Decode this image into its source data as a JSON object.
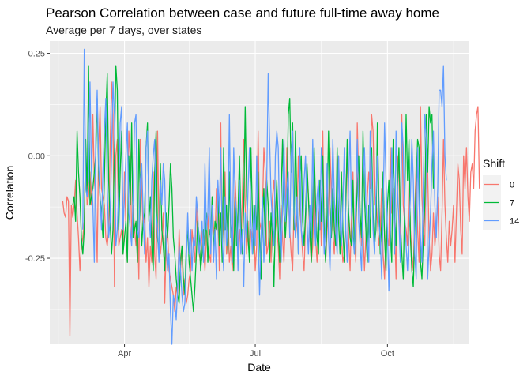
{
  "chart_data": {
    "type": "line",
    "title": "Pearson Correlation between case and future full-time away home",
    "subtitle": "Average per 7 days, over states",
    "xlabel": "Date",
    "ylabel": "Correlation",
    "x_ticks": [
      "Apr",
      "Jul",
      "Oct"
    ],
    "y_ticks": [
      0.25,
      0.0,
      -0.25
    ],
    "y_tick_labels": [
      "0.25",
      "0.00",
      "-0.25"
    ],
    "ylim": [
      -0.46,
      0.28
    ],
    "grid": true,
    "legend_position": "right",
    "legend_title": "Shift",
    "series": [
      {
        "name": "0",
        "color": "#F8766D",
        "start": "2020-02-18",
        "values": [
          -0.11,
          -0.14,
          -0.15,
          -0.1,
          -0.11,
          -0.44,
          -0.12,
          -0.15,
          -0.12,
          -0.06,
          -0.14,
          -0.2,
          -0.28,
          -0.22,
          -0.2,
          -0.16,
          0.02,
          -0.12,
          -0.1,
          -0.04,
          -0.12,
          0.1,
          -0.06,
          -0.1,
          -0.26,
          0.02,
          0.12,
          -0.08,
          -0.1,
          -0.12,
          -0.2,
          -0.22,
          -0.18,
          0.02,
          0.18,
          0.1,
          -0.32,
          0.0,
          0.04,
          -0.22,
          -0.2,
          -0.18,
          -0.24,
          -0.04,
          -0.18,
          -0.26,
          0.06,
          0.0,
          -0.2,
          -0.12,
          -0.18,
          -0.22,
          -0.14,
          -0.3,
          0.04,
          -0.08,
          -0.18,
          -0.14,
          -0.26,
          -0.2,
          -0.32,
          -0.22,
          -0.26,
          -0.04,
          -0.24,
          -0.3,
          0.06,
          -0.18,
          -0.24,
          -0.2,
          -0.14,
          -0.36,
          -0.22,
          -0.18,
          -0.28,
          -0.3,
          -0.32,
          -0.34,
          -0.38,
          -0.32,
          -0.34,
          -0.18,
          -0.28,
          -0.22,
          -0.34,
          -0.3,
          -0.36,
          -0.34,
          -0.3,
          -0.28,
          -0.18,
          -0.22,
          -0.26,
          -0.12,
          -0.2,
          -0.24,
          -0.26,
          -0.18,
          -0.22,
          -0.28,
          -0.2,
          -0.14,
          -0.24,
          -0.26,
          -0.1,
          -0.18,
          -0.2,
          -0.08,
          -0.12,
          -0.28,
          0.08,
          -0.22,
          -0.16,
          -0.04,
          -0.24,
          -0.14,
          -0.26,
          -0.22,
          -0.28,
          -0.2,
          -0.06,
          -0.14,
          -0.22,
          -0.18,
          -0.24,
          -0.1,
          0.04,
          -0.12,
          -0.24,
          -0.16,
          -0.26,
          -0.18,
          -0.2,
          -0.14,
          -0.28,
          -0.22,
          0.06,
          -0.16,
          -0.18,
          -0.14,
          0.02,
          -0.04,
          -0.24,
          -0.22,
          -0.16,
          -0.26,
          -0.1,
          -0.06,
          -0.14,
          -0.18,
          -0.22,
          -0.3,
          -0.12,
          -0.2,
          -0.26,
          -0.14,
          0.02,
          -0.1,
          -0.18,
          -0.24,
          -0.28,
          -0.12,
          -0.2,
          -0.16,
          0.0,
          -0.12,
          -0.18,
          -0.24,
          -0.28,
          -0.16,
          -0.06,
          -0.1,
          -0.2,
          -0.26,
          -0.22,
          -0.06,
          -0.2,
          -0.26,
          -0.16,
          -0.1,
          -0.22,
          0.06,
          -0.2,
          -0.26,
          -0.18,
          -0.14,
          0.02,
          -0.1,
          -0.18,
          -0.24,
          -0.14,
          -0.08,
          0.0,
          -0.16,
          -0.2,
          -0.26,
          -0.24,
          -0.12,
          0.02,
          -0.2,
          -0.28,
          -0.14,
          -0.04,
          -0.2,
          -0.26,
          0.08,
          -0.06,
          -0.16,
          -0.22,
          -0.18,
          -0.28,
          -0.2,
          -0.1,
          -0.04,
          -0.08,
          0.1,
          0.06,
          -0.12,
          -0.1,
          -0.16,
          -0.22,
          -0.18,
          -0.08,
          -0.24,
          -0.3,
          -0.18,
          -0.2,
          -0.22,
          0.02,
          -0.14,
          -0.08,
          -0.18,
          -0.3,
          0.0,
          -0.04,
          -0.22,
          0.1,
          -0.12,
          -0.16,
          -0.18,
          -0.22,
          -0.06,
          -0.18,
          -0.24,
          -0.28,
          -0.14,
          -0.02,
          -0.18,
          -0.26,
          0.12,
          -0.1,
          -0.18,
          -0.22,
          0.06,
          -0.04,
          -0.2,
          -0.28,
          -0.24,
          -0.14,
          -0.22,
          -0.18,
          -0.1,
          -0.24,
          -0.28,
          -0.14,
          0.04,
          -0.12,
          -0.2,
          -0.26,
          -0.16,
          -0.22,
          -0.18,
          -0.12,
          -0.26,
          -0.14,
          -0.02,
          -0.06,
          -0.18,
          -0.24,
          0.0,
          -0.08,
          0.02,
          -0.1,
          -0.16,
          -0.04,
          -0.02,
          -0.08,
          0.06,
          0.1,
          0.12,
          -0.08
        ]
      },
      {
        "name": "7",
        "color": "#00BA38",
        "start": "2020-02-25",
        "values": [
          -0.12,
          -0.1,
          -0.16,
          0.06,
          -0.04,
          -0.1,
          -0.2,
          -0.24,
          -0.18,
          0.04,
          -0.1,
          0.22,
          -0.12,
          -0.1,
          -0.08,
          -0.04,
          0.0,
          0.14,
          -0.04,
          -0.1,
          -0.14,
          -0.2,
          -0.06,
          0.1,
          0.2,
          -0.06,
          -0.16,
          -0.24,
          -0.18,
          0.02,
          0.22,
          0.16,
          -0.18,
          -0.04,
          0.06,
          -0.24,
          -0.2,
          -0.16,
          -0.26,
          0.0,
          -0.12,
          0.08,
          -0.2,
          -0.18,
          -0.16,
          -0.26,
          0.04,
          -0.1,
          -0.22,
          -0.16,
          -0.14,
          0.02,
          0.08,
          -0.16,
          -0.1,
          -0.22,
          -0.28,
          -0.04,
          0.06,
          -0.2,
          -0.24,
          -0.02,
          -0.18,
          -0.22,
          -0.28,
          -0.14,
          -0.2,
          -0.12,
          -0.02,
          -0.08,
          -0.2,
          -0.24,
          -0.3,
          -0.34,
          -0.36,
          -0.26,
          -0.22,
          -0.3,
          -0.34,
          -0.22,
          -0.18,
          -0.26,
          -0.3,
          -0.34,
          -0.38,
          -0.32,
          -0.24,
          -0.16,
          -0.2,
          -0.28,
          -0.24,
          -0.18,
          -0.22,
          -0.14,
          -0.26,
          -0.18,
          -0.2,
          -0.1,
          -0.24,
          -0.16,
          -0.18,
          -0.08,
          -0.22,
          -0.14,
          -0.26,
          0.02,
          -0.18,
          -0.12,
          -0.24,
          -0.04,
          -0.2,
          -0.16,
          -0.28,
          -0.1,
          -0.22,
          -0.14,
          0.0,
          -0.16,
          -0.24,
          -0.12,
          0.12,
          -0.1,
          -0.2,
          -0.26,
          0.02,
          -0.14,
          -0.24,
          -0.12,
          -0.18,
          -0.04,
          -0.2,
          -0.3,
          -0.16,
          -0.08,
          -0.22,
          -0.06,
          -0.12,
          -0.26,
          -0.14,
          -0.2,
          -0.32,
          -0.16,
          -0.06,
          -0.18,
          -0.26,
          -0.1,
          0.04,
          -0.14,
          -0.2,
          -0.12,
          0.1,
          0.14,
          -0.04,
          0.08,
          -0.18,
          0.06,
          -0.12,
          -0.24,
          -0.06,
          0.0,
          -0.16,
          -0.22,
          -0.14,
          -0.02,
          -0.1,
          -0.18,
          -0.26,
          -0.14,
          0.02,
          -0.12,
          -0.2,
          -0.24,
          -0.06,
          -0.16,
          0.0,
          -0.2,
          -0.26,
          -0.14,
          0.06,
          -0.12,
          -0.2,
          -0.08,
          -0.18,
          -0.22,
          0.02,
          -0.16,
          -0.24,
          -0.04,
          -0.18,
          -0.26,
          -0.12,
          0.04,
          -0.14,
          -0.2,
          -0.22,
          -0.06,
          -0.24,
          -0.16,
          -0.08,
          0.0,
          -0.14,
          -0.2,
          0.06,
          -0.1,
          -0.18,
          -0.26,
          -0.12,
          -0.2,
          0.02,
          -0.14,
          -0.22,
          -0.18,
          0.08,
          -0.1,
          -0.24,
          -0.16,
          -0.04,
          -0.2,
          -0.28,
          -0.12,
          -0.06,
          -0.18,
          -0.26,
          0.04,
          -0.14,
          -0.22,
          -0.08,
          0.02,
          -0.16,
          -0.24,
          -0.3,
          -0.12,
          0.1,
          -0.06,
          0.04,
          -0.2,
          -0.28,
          -0.32,
          -0.18,
          -0.06,
          0.04,
          0.02,
          -0.26,
          -0.3,
          -0.2,
          -0.12,
          0.1,
          -0.04,
          0.12,
          0.08,
          0.1,
          -0.08
        ]
      },
      {
        "name": "14",
        "color": "#619CFF",
        "start": "2020-03-03",
        "values": [
          -0.18,
          0.26,
          -0.08,
          -0.1,
          -0.06,
          0.18,
          -0.04,
          -0.12,
          -0.26,
          0.04,
          0.16,
          -0.02,
          -0.1,
          -0.18,
          -0.04,
          0.06,
          0.14,
          -0.08,
          -0.2,
          -0.16,
          0.0,
          0.18,
          0.1,
          -0.22,
          -0.18,
          -0.08,
          0.08,
          0.12,
          -0.18,
          -0.1,
          0.0,
          0.08,
          -0.14,
          -0.18,
          -0.22,
          -0.1,
          0.08,
          0.1,
          -0.18,
          -0.2,
          -0.06,
          -0.02,
          -0.14,
          -0.24,
          0.02,
          0.06,
          -0.14,
          -0.2,
          -0.06,
          0.0,
          0.04,
          -0.14,
          -0.18,
          -0.26,
          -0.06,
          -0.12,
          -0.02,
          -0.06,
          -0.22,
          -0.28,
          -0.24,
          -0.38,
          -0.46,
          -0.34,
          -0.36,
          -0.4,
          -0.32,
          -0.22,
          -0.28,
          -0.34,
          -0.38,
          -0.36,
          -0.26,
          -0.14,
          -0.24,
          -0.18,
          -0.28,
          -0.2,
          -0.22,
          -0.1,
          -0.14,
          -0.24,
          -0.2,
          -0.16,
          -0.26,
          -0.02,
          -0.18,
          -0.14,
          0.02,
          -0.24,
          -0.12,
          -0.26,
          -0.18,
          -0.3,
          -0.06,
          -0.14,
          0.02,
          -0.2,
          -0.28,
          -0.1,
          -0.22,
          -0.16,
          0.1,
          -0.18,
          -0.26,
          0.02,
          -0.1,
          -0.14,
          -0.28,
          -0.06,
          -0.24,
          -0.18,
          -0.32,
          -0.14,
          -0.2,
          -0.08,
          0.02,
          -0.16,
          -0.24,
          -0.12,
          -0.22,
          0.0,
          -0.18,
          -0.34,
          -0.2,
          -0.1,
          -0.26,
          -0.16,
          -0.06,
          0.2,
          0.04,
          -0.1,
          -0.16,
          -0.22,
          0.0,
          0.06,
          0.02,
          -0.18,
          -0.26,
          -0.12,
          0.04,
          -0.16,
          -0.08,
          -0.04,
          -0.2,
          0.0,
          0.06,
          -0.14,
          -0.2,
          -0.1,
          -0.24,
          0.02,
          -0.18,
          -0.22,
          -0.06,
          0.0,
          -0.16,
          -0.24,
          -0.12,
          -0.2,
          0.04,
          -0.14,
          -0.22,
          -0.1,
          -0.06,
          -0.18,
          0.02,
          -0.12,
          -0.24,
          -0.16,
          -0.02,
          -0.2,
          -0.28,
          -0.14,
          0.04,
          -0.1,
          -0.18,
          -0.24,
          0.0,
          -0.16,
          -0.22,
          -0.12,
          0.02,
          -0.18,
          -0.26,
          -0.06,
          0.06,
          -0.14,
          -0.2,
          -0.24,
          -0.1,
          0.04,
          -0.16,
          -0.22,
          -0.28,
          -0.08,
          0.02,
          -0.12,
          -0.2,
          -0.26,
          0.06,
          -0.04,
          -0.18,
          -0.24,
          -0.1,
          0.0,
          -0.16,
          -0.2,
          -0.3,
          -0.14,
          0.08,
          -0.06,
          -0.18,
          -0.33,
          -0.2,
          0.02,
          -0.12,
          -0.24,
          0.06,
          -0.08,
          -0.16,
          -0.26,
          0.08,
          0.02,
          -0.14,
          -0.22,
          -0.28,
          -0.18,
          -0.1,
          0.04,
          -0.06,
          -0.24,
          -0.3,
          0.02,
          -0.12,
          -0.2,
          -0.26,
          -0.06,
          0.1,
          0.04,
          -0.3,
          -0.22,
          -0.14,
          -0.02,
          0.06,
          -0.12,
          -0.2,
          -0.08,
          0.16,
          0.16,
          0.12,
          0.22,
          0.0,
          -0.06
        ]
      }
    ]
  }
}
